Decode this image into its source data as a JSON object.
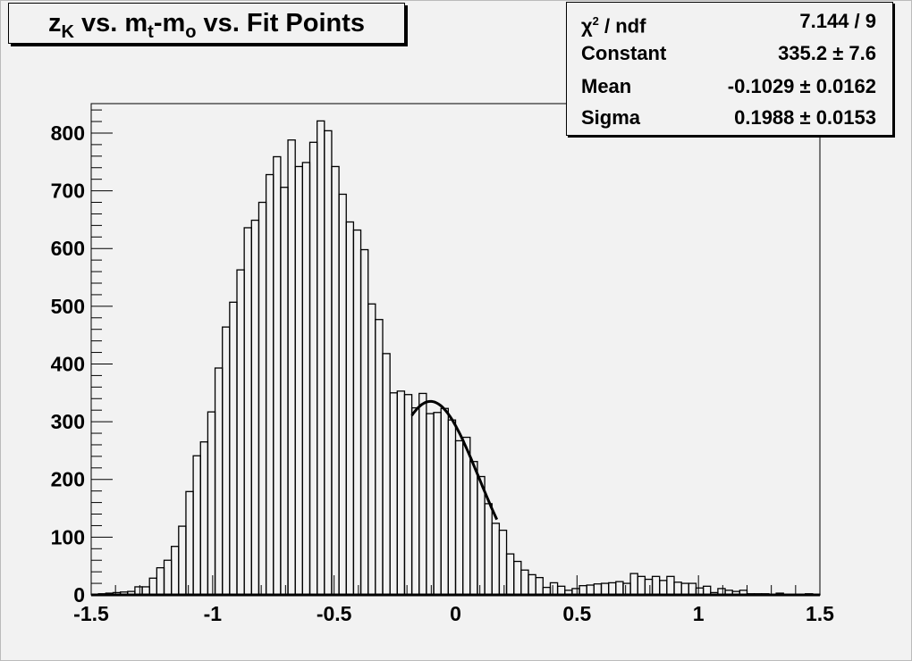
{
  "chart_data": {
    "type": "bar",
    "histogram": true,
    "title_parts": {
      "z": "z",
      "z_sub": "K",
      "vs1": " vs. ",
      "m": "m",
      "m_sub": "t",
      "dash": "-m",
      "o_sub": "o",
      "rest": " vs. Fit Points"
    },
    "xlim": [
      -1.5,
      1.5
    ],
    "ylim": [
      0,
      851
    ],
    "bin_width": 0.03,
    "x_ticks": [
      "-1.5",
      "-1",
      "-0.5",
      "0",
      "0.5",
      "1",
      "1.5"
    ],
    "y_ticks": [
      "0",
      "100",
      "200",
      "300",
      "400",
      "500",
      "600",
      "700",
      "800"
    ],
    "values": [
      0,
      2,
      3,
      4,
      5,
      6,
      14,
      14,
      29,
      47,
      60,
      84,
      119,
      179,
      241,
      265,
      317,
      393,
      464,
      507,
      563,
      636,
      649,
      680,
      728,
      759,
      706,
      788,
      742,
      749,
      784,
      821,
      804,
      742,
      694,
      646,
      632,
      598,
      504,
      477,
      418,
      350,
      353,
      347,
      324,
      349,
      314,
      316,
      323,
      303,
      267,
      273,
      231,
      205,
      158,
      124,
      112,
      71,
      58,
      43,
      35,
      30,
      13,
      21,
      15,
      8,
      11,
      16,
      17,
      19,
      20,
      21,
      23,
      20,
      37,
      32,
      27,
      32,
      25,
      32,
      22,
      20,
      20,
      12,
      15,
      4,
      11,
      8,
      6,
      8,
      2,
      2,
      2,
      1,
      3,
      1,
      0,
      1,
      2,
      1
    ],
    "fit": {
      "function": "gaus",
      "constant": 335.2,
      "mean": -0.1029,
      "sigma": 0.1988,
      "range": [
        -0.18,
        0.17
      ]
    },
    "line_color": "#000000",
    "background_color": "#f2f2f2",
    "grid": false
  },
  "stats": {
    "rows": [
      {
        "label_main": "χ",
        "label_sup": "2",
        "label_rest": " / ndf",
        "value": "7.144 / 9"
      },
      {
        "label": "Constant",
        "value": "335.2 ± 7.6"
      },
      {
        "label": "Mean",
        "value": "-0.1029 ± 0.0162"
      },
      {
        "label": "Sigma",
        "value": "0.1988 ± 0.0153"
      }
    ]
  }
}
